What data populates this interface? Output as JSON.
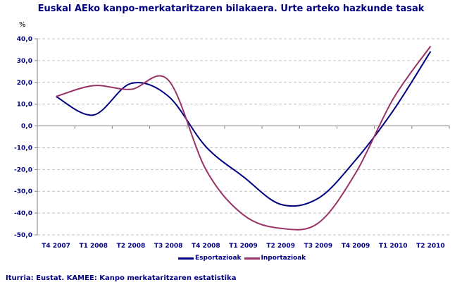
{
  "chart_data": {
    "type": "line",
    "title": "Euskal AEko kanpo-merkataritzaren bilakaera. Urte arteko hazkunde tasak",
    "ylabel": "%",
    "xlabel": "",
    "categories": [
      "T4 2007",
      "T1 2008",
      "T2 2008",
      "T3 2008",
      "T4 2008",
      "T1 2009",
      "T2 2009",
      "T3 2009",
      "T4 2009",
      "T1 2010",
      "T2 2010"
    ],
    "yticks": [
      "40,0",
      "30,0",
      "20,0",
      "10,0",
      "0,0",
      "-10,0",
      "-20,0",
      "-30,0",
      "-40,0",
      "-50,0"
    ],
    "ylim": [
      -50,
      40
    ],
    "grid": true,
    "smoothed": true,
    "legend_position": "bottom",
    "series": [
      {
        "name": "Esportazioak",
        "color": "#000080",
        "values": [
          13.5,
          5.0,
          19.5,
          13.6,
          -9.5,
          -23.3,
          -36.0,
          -33.2,
          -15.6,
          7.0,
          34.2
        ]
      },
      {
        "name": "Inportazioak",
        "color": "#993366",
        "values": [
          13.5,
          18.5,
          16.8,
          21.0,
          -20.0,
          -40.8,
          -47.0,
          -44.6,
          -21.6,
          12.4,
          36.6
        ]
      }
    ]
  },
  "source": "Iturria: Eustat. KAMEE: Kanpo merkataritzaren estatistika"
}
